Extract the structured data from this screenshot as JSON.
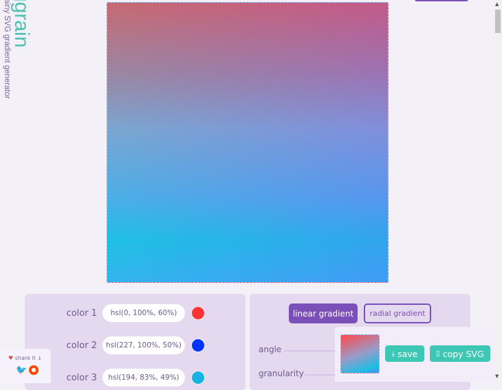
{
  "brand": {
    "title": "ggrain",
    "subtitle": "grainy SVG gradient generator"
  },
  "colors": [
    {
      "label": "color 1",
      "value": "hsl(0, 100%, 60%)",
      "swatch": "#ff3333"
    },
    {
      "label": "color 2",
      "value": "hsl(227, 100%, 50%)",
      "swatch": "#0033ff"
    },
    {
      "label": "color 3",
      "value": "hsl(194, 83%, 49%)",
      "swatch": "#15b4e4"
    }
  ],
  "gradient": {
    "linear_label": "linear gradient",
    "radial_label": "radial gradient",
    "selected": "linear"
  },
  "sliders": {
    "angle_label": "angle",
    "granularity_label": "granularity"
  },
  "export": {
    "save_label": "save",
    "copy_label": "copy SVG"
  },
  "share": {
    "label": "share it ↓"
  },
  "accent": "#7b4fb8",
  "teal": "#3fc7b5"
}
